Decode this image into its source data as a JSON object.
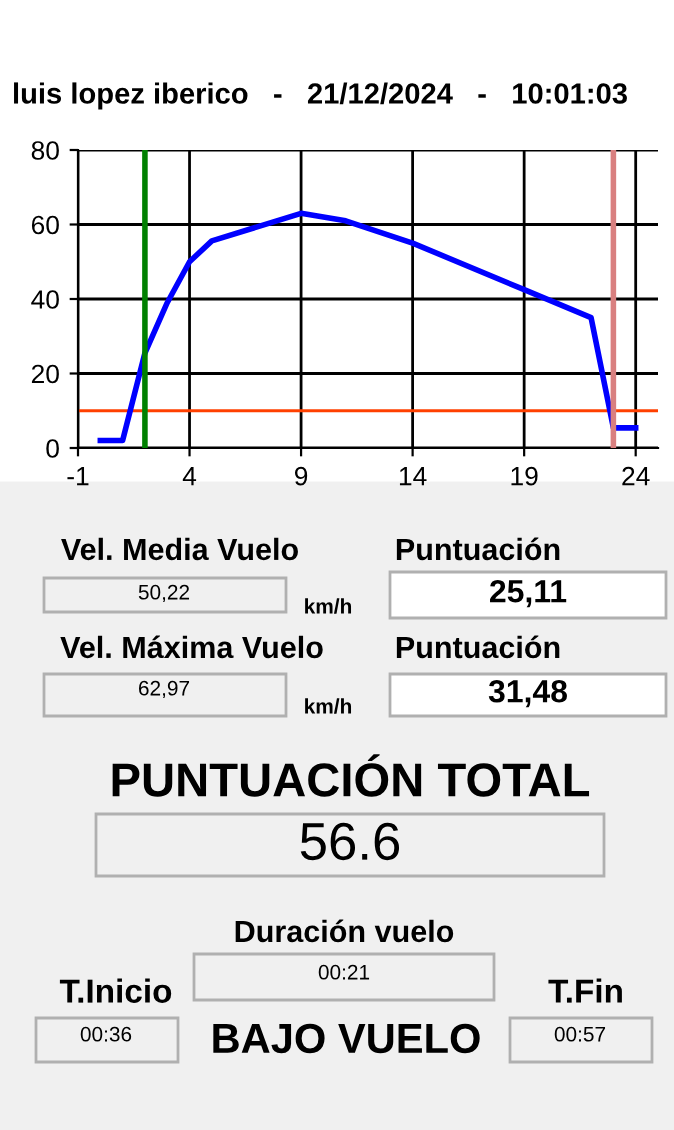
{
  "chart_data": [
    {
      "type": "line",
      "title": "luis lopez iberico   -   21/12/2024   -   10:01:03",
      "x": [
        0,
        1,
        2,
        3,
        4,
        5,
        9,
        11,
        14,
        19,
        22,
        23,
        24
      ],
      "series": [
        {
          "color": "#0000ff",
          "values": [
            2,
            2,
            25.5,
            39,
            50,
            55.6,
            63,
            61,
            55,
            42.5,
            35,
            5.4,
            5.4
          ]
        }
      ],
      "xlim": [
        -1,
        25
      ],
      "ylim": [
        0,
        80
      ],
      "xticks": [
        -1,
        4,
        9,
        14,
        19,
        24
      ],
      "yticks": [
        0,
        20,
        40,
        60,
        80
      ],
      "grid": true,
      "marker": "none",
      "line_style": "solid",
      "ref_lines": [
        {
          "axis": "x",
          "value": 2,
          "color": "#008000"
        },
        {
          "axis": "x",
          "value": 23,
          "color": "#d98080"
        },
        {
          "axis": "y",
          "value": 10,
          "color": "#ff4000"
        }
      ]
    },
    {
      "type": "other",
      "annotations": [
        "Vel. Media Vuelo",
        "50,22",
        "km/h",
        "Puntuación",
        "25,11",
        "Vel. Máxima Vuelo",
        "62,97",
        "km/h",
        "Puntuación",
        "31,48",
        "PUNTUACIÓN TOTAL",
        "56.6",
        "Duración vuelo",
        "00:21",
        "T.Inicio",
        "00:36",
        "BAJO VUELO",
        "T.Fin",
        "00:57"
      ]
    }
  ]
}
